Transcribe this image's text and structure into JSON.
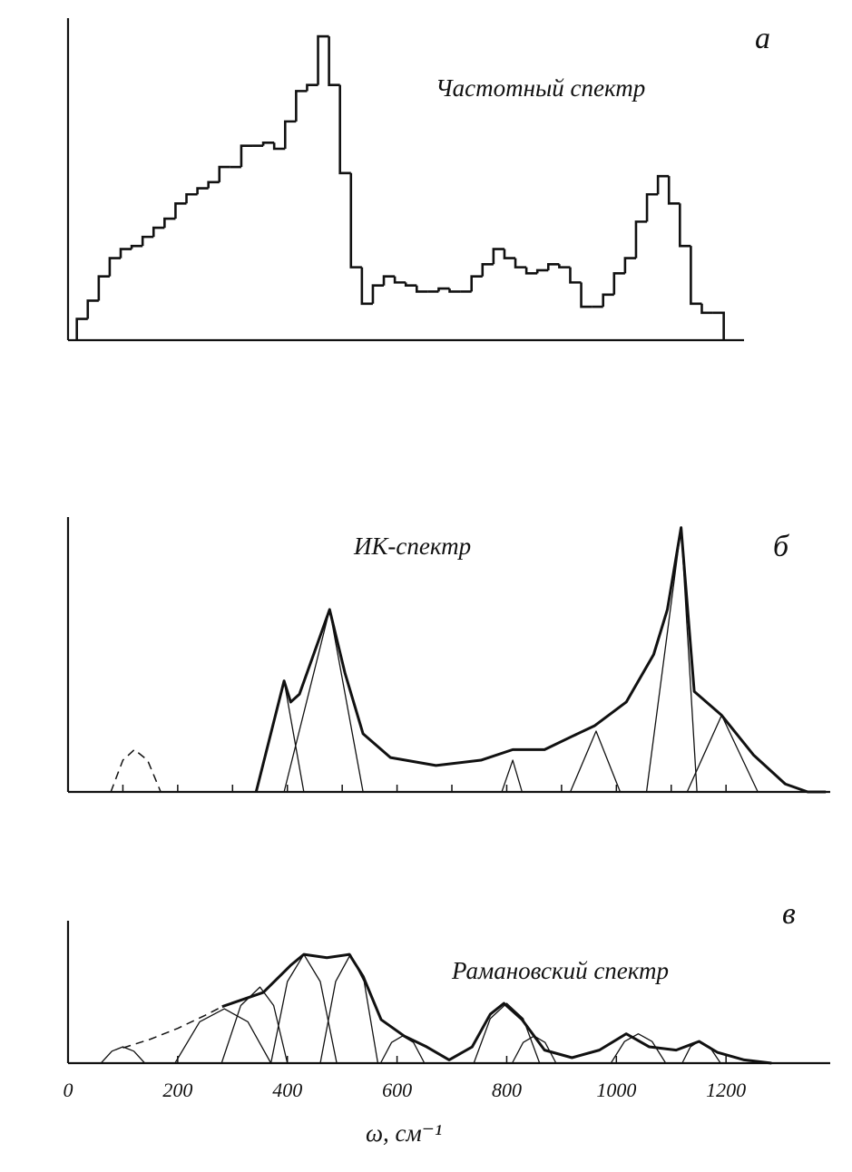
{
  "chart_data": [
    {
      "type": "histogram",
      "panel_label": "а",
      "title": "Частотный спектр",
      "bins": [
        16,
        36,
        56,
        76,
        96,
        116,
        136,
        156,
        176,
        196,
        216,
        236,
        256,
        276,
        296,
        316,
        336,
        356,
        376,
        396,
        416,
        436,
        456,
        476,
        496,
        516,
        536,
        556,
        576,
        596,
        616,
        636,
        656,
        676,
        696,
        716,
        736,
        756,
        776,
        796,
        816,
        836,
        856,
        876,
        896,
        916,
        936,
        956,
        976,
        996,
        1016,
        1036,
        1056,
        1076,
        1096,
        1116,
        1136,
        1156,
        1176,
        1196
      ],
      "values": [
        7,
        13,
        21,
        27,
        30,
        31,
        34,
        37,
        40,
        45,
        48,
        50,
        52,
        57,
        57,
        64,
        64,
        65,
        63,
        72,
        82,
        84,
        100,
        84,
        55,
        24,
        12,
        18,
        21,
        19,
        18,
        16,
        16,
        17,
        16,
        16,
        21,
        25,
        30,
        27,
        24,
        22,
        23,
        25,
        24,
        19,
        11,
        11,
        15,
        22,
        27,
        39,
        48,
        54,
        45,
        31,
        12,
        9,
        9
      ],
      "color": "#111",
      "xlim": [
        0,
        1233
      ],
      "ylim": [
        0,
        106
      ]
    },
    {
      "type": "line",
      "panel_label": "б",
      "title": "ИК-спектр",
      "series": [
        {
          "color": "#111",
          "line_width": 3,
          "x": [
            343,
            394,
            406,
            422,
            477,
            505,
            538,
            588,
            671,
            753,
            811,
            869,
            919,
            960,
            1018,
            1068,
            1093,
            1118,
            1142,
            1192,
            1250,
            1308,
            1349,
            1382
          ],
          "values": [
            0,
            42,
            34,
            37,
            69,
            45,
            22,
            13,
            10,
            12,
            16,
            16,
            21,
            25,
            34,
            52,
            69,
            100,
            38,
            29,
            14,
            3,
            0,
            0
          ]
        },
        {
          "color": "#111",
          "line_width": 1.3,
          "x": [
            343,
            394,
            430
          ],
          "values": [
            0,
            42,
            0
          ]
        },
        {
          "color": "#111",
          "line_width": 1.3,
          "x": [
            394,
            477,
            538
          ],
          "values": [
            0,
            69,
            0
          ]
        },
        {
          "color": "#111",
          "line_width": 1.3,
          "x": [
            791,
            811,
            828
          ],
          "values": [
            0,
            12,
            0
          ]
        },
        {
          "color": "#111",
          "line_width": 1.3,
          "x": [
            916,
            963,
            1007
          ],
          "values": [
            0,
            23,
            0
          ]
        },
        {
          "color": "#111",
          "line_width": 1.3,
          "x": [
            1055,
            1118,
            1147
          ],
          "values": [
            0,
            100,
            0
          ]
        },
        {
          "color": "#111",
          "line_width": 1.3,
          "x": [
            1129,
            1192,
            1258
          ],
          "values": [
            0,
            29,
            0
          ]
        },
        {
          "color": "#111",
          "line_width": 1.5,
          "dashed": true,
          "x": [
            78,
            100,
            121,
            145,
            169
          ],
          "values": [
            0,
            12,
            16,
            12,
            0
          ]
        }
      ],
      "xticks": [
        100,
        200,
        300,
        400,
        500,
        600,
        700,
        800,
        900,
        1000,
        1100,
        1200
      ],
      "tick_labels": false,
      "xlim": [
        0,
        1390
      ],
      "ylim": [
        0,
        104
      ]
    },
    {
      "type": "line",
      "panel_label": "в",
      "title": "Рамановский спектр",
      "xlabel": "ω, см⁻¹",
      "series": [
        {
          "color": "#111",
          "line_width": 3,
          "x": [
            281,
            356,
            406,
            430,
            472,
            513,
            538,
            571,
            613,
            654,
            695,
            737,
            770,
            795,
            828,
            869,
            919,
            969,
            1018,
            1060,
            1109,
            1151,
            1184,
            1233,
            1283
          ],
          "values": [
            52,
            65,
            90,
            100,
            97,
            100,
            80,
            40,
            25,
            15,
            3,
            15,
            45,
            55,
            40,
            12,
            5,
            12,
            27,
            15,
            12,
            20,
            10,
            3,
            0
          ]
        },
        {
          "color": "#111",
          "line_width": 1.5,
          "dashed": true,
          "x": [
            100,
            150,
            200,
            250,
            281
          ],
          "values": [
            14,
            22,
            32,
            44,
            52
          ]
        },
        {
          "color": "#111",
          "line_width": 1.3,
          "x": [
            60,
            80,
            100,
            120,
            140
          ],
          "values": [
            0,
            11,
            15,
            11,
            0
          ]
        },
        {
          "color": "#111",
          "line_width": 1.3,
          "x": [
            195,
            240,
            285,
            328,
            370
          ],
          "values": [
            0,
            38,
            50,
            38,
            0
          ]
        },
        {
          "color": "#111",
          "line_width": 1.3,
          "x": [
            280,
            315,
            350,
            375,
            400
          ],
          "values": [
            0,
            53,
            70,
            53,
            0
          ]
        },
        {
          "color": "#111",
          "line_width": 1.3,
          "x": [
            370,
            400,
            430,
            460,
            490
          ],
          "values": [
            0,
            75,
            100,
            75,
            0
          ]
        },
        {
          "color": "#111",
          "line_width": 1.3,
          "x": [
            460,
            488,
            515,
            540,
            565
          ],
          "values": [
            0,
            75,
            100,
            75,
            0
          ]
        },
        {
          "color": "#111",
          "line_width": 1.3,
          "x": [
            570,
            590,
            610,
            630,
            650
          ],
          "values": [
            0,
            19,
            25,
            19,
            0
          ]
        },
        {
          "color": "#111",
          "line_width": 1.3,
          "x": [
            740,
            770,
            800,
            830,
            860
          ],
          "values": [
            0,
            41,
            55,
            41,
            0
          ]
        },
        {
          "color": "#111",
          "line_width": 1.3,
          "x": [
            810,
            830,
            850,
            870,
            890
          ],
          "values": [
            0,
            19,
            25,
            19,
            0
          ]
        },
        {
          "color": "#111",
          "line_width": 1.3,
          "x": [
            990,
            1015,
            1040,
            1065,
            1090
          ],
          "values": [
            0,
            20,
            27,
            20,
            0
          ]
        },
        {
          "color": "#111",
          "line_width": 1.3,
          "x": [
            1120,
            1135,
            1150,
            1170,
            1190
          ],
          "values": [
            0,
            15,
            20,
            15,
            0
          ]
        }
      ],
      "xticks": [
        0,
        200,
        400,
        600,
        800,
        1000,
        1200
      ],
      "tick_labels": true,
      "xlim": [
        0,
        1390
      ],
      "ylim": [
        0,
        131
      ]
    }
  ]
}
